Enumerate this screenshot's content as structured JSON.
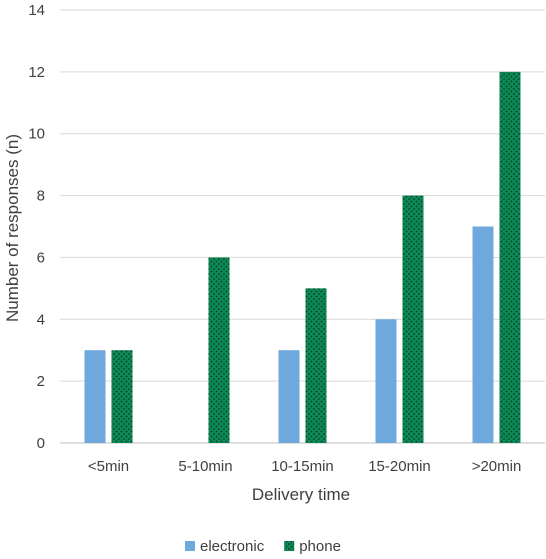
{
  "chart_data": {
    "type": "bar",
    "title": "",
    "xlabel": "Delivery time",
    "ylabel": "Number of responses (n)",
    "categories": [
      "<5min",
      "5-10min",
      "10-15min",
      "15-20min",
      ">20min"
    ],
    "series": [
      {
        "name": "electronic",
        "values": [
          3,
          0,
          3,
          4,
          7
        ],
        "color": "#6fa8dc"
      },
      {
        "name": "phone",
        "values": [
          3,
          6,
          5,
          8,
          12
        ],
        "color": "#0b8a57",
        "pattern": "dotted"
      }
    ],
    "ylim": [
      0,
      14
    ],
    "yticks": [
      0,
      2,
      4,
      6,
      8,
      10,
      12,
      14
    ],
    "grid": true,
    "legend_position": "bottom"
  }
}
